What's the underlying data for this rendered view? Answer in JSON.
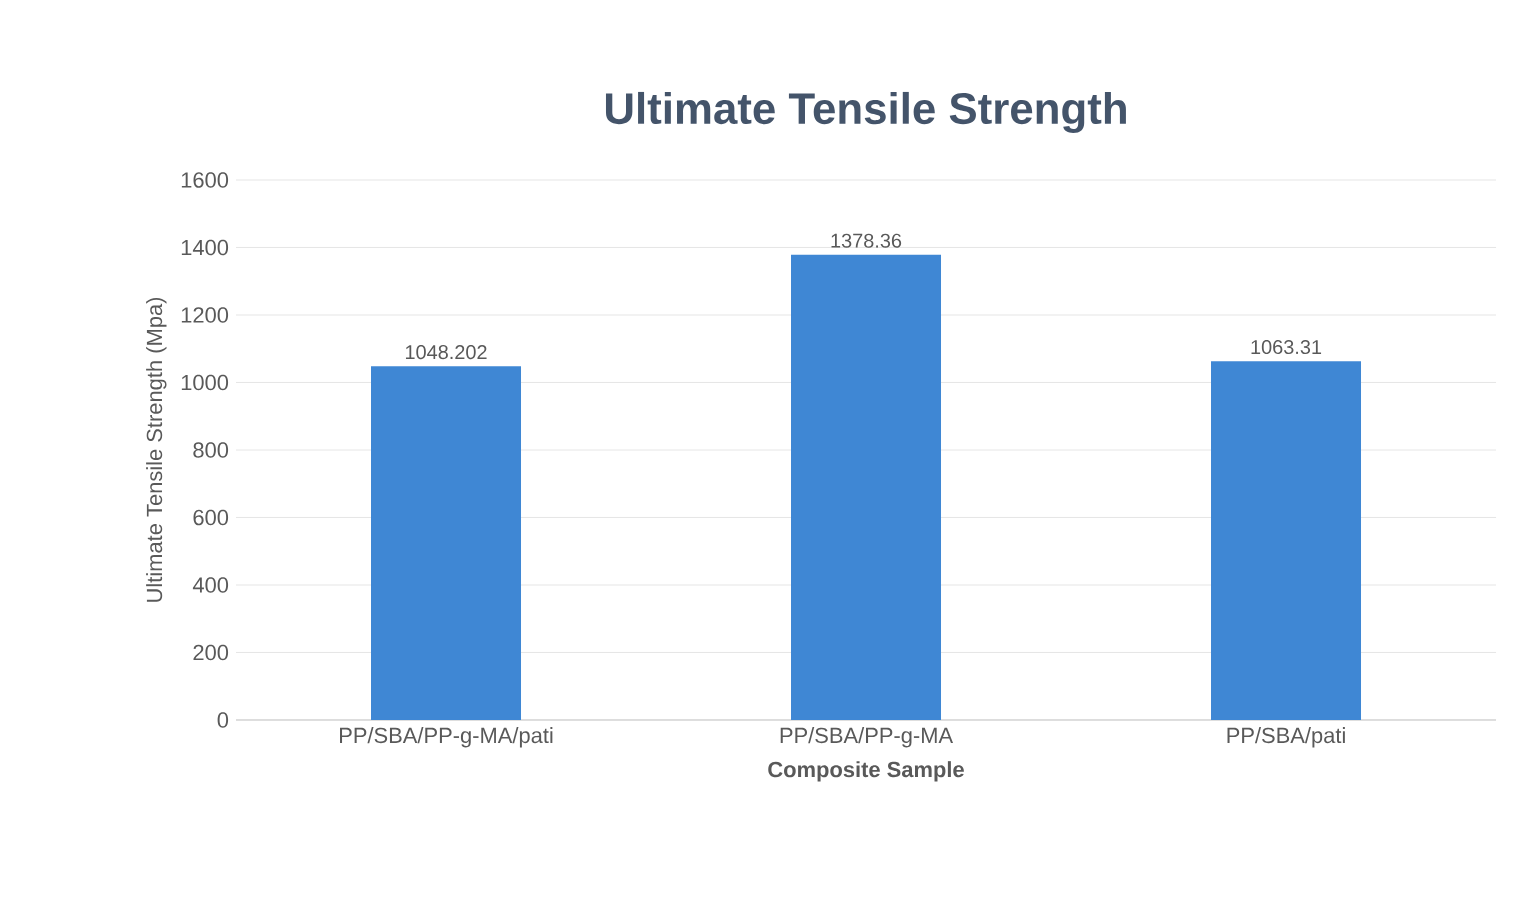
{
  "chart_data": {
    "type": "bar",
    "title": "Ultimate Tensile Strength",
    "xlabel": "Composite Sample",
    "ylabel": "Ultimate Tensile Strength (Mpa)",
    "categories": [
      "PP/SBA/PP-g-MA/pati",
      "PP/SBA/PP-g-MA",
      "PP/SBA/pati"
    ],
    "values": [
      1048.202,
      1378.36,
      1063.31
    ],
    "value_labels": [
      "1048.202",
      "1378.36",
      "1063.31"
    ],
    "color": "#3f87d4",
    "ylim": [
      0,
      1600
    ],
    "yticks": [
      0,
      200,
      400,
      600,
      800,
      1000,
      1200,
      1400,
      1600
    ],
    "grid": "y"
  }
}
